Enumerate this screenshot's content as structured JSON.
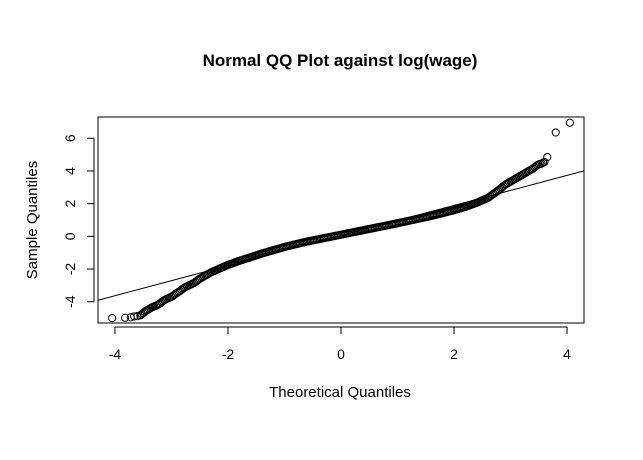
{
  "chart_data": {
    "type": "scatter",
    "title": "Normal QQ Plot against log(wage)",
    "xlabel": "Theoretical Quantiles",
    "ylabel": "Sample Quantiles",
    "xlim": [
      -4.3,
      4.3
    ],
    "ylim": [
      -5.3,
      7.3
    ],
    "x_ticks": [
      -4,
      -2,
      0,
      2,
      4
    ],
    "y_ticks": [
      -4,
      -2,
      0,
      2,
      4,
      6
    ],
    "grid": false,
    "legend": "none",
    "point_style": "open circle",
    "series": [
      {
        "x": [
          -4.05,
          -3.82,
          -3.72,
          -3.66,
          -3.6,
          -3.55,
          -3.5,
          -3.45,
          -3.4,
          -3.35,
          -3.3,
          -3.25,
          -3.2,
          -3.15,
          -3.1,
          -3.05,
          -3.0,
          -2.95,
          -2.9,
          -2.85,
          -2.8,
          -2.75,
          -2.7,
          -2.6,
          -2.5,
          -2.4,
          -2.3,
          -2.2,
          -2.1,
          -2.0,
          -1.8,
          -1.6,
          -1.4,
          -1.2,
          -1.0,
          -0.8,
          -0.6,
          -0.4,
          -0.2,
          0.0,
          0.2,
          0.4,
          0.6,
          0.8,
          1.0,
          1.2,
          1.4,
          1.6,
          1.8,
          2.0,
          2.2,
          2.4,
          2.6,
          2.7,
          2.8,
          2.9,
          3.0,
          3.1,
          3.2,
          3.3,
          3.35,
          3.4,
          3.45,
          3.5,
          3.55,
          3.6,
          3.65,
          3.8,
          4.05
        ],
        "y": [
          -5.0,
          -4.98,
          -4.95,
          -4.9,
          -4.88,
          -4.83,
          -4.7,
          -4.55,
          -4.45,
          -4.35,
          -4.28,
          -4.2,
          -4.1,
          -3.95,
          -3.85,
          -3.78,
          -3.7,
          -3.58,
          -3.45,
          -3.35,
          -3.2,
          -3.1,
          -3.02,
          -2.85,
          -2.6,
          -2.4,
          -2.2,
          -2.05,
          -1.9,
          -1.75,
          -1.5,
          -1.28,
          -1.05,
          -0.85,
          -0.65,
          -0.48,
          -0.32,
          -0.18,
          -0.04,
          0.1,
          0.24,
          0.38,
          0.52,
          0.66,
          0.8,
          0.95,
          1.1,
          1.25,
          1.42,
          1.6,
          1.8,
          2.05,
          2.35,
          2.6,
          2.85,
          3.15,
          3.35,
          3.55,
          3.75,
          3.95,
          4.05,
          4.15,
          4.3,
          4.4,
          4.45,
          4.55,
          4.85,
          6.35,
          6.95
        ]
      }
    ],
    "reference_line": {
      "slope": 0.92,
      "intercept": 0.05
    }
  }
}
